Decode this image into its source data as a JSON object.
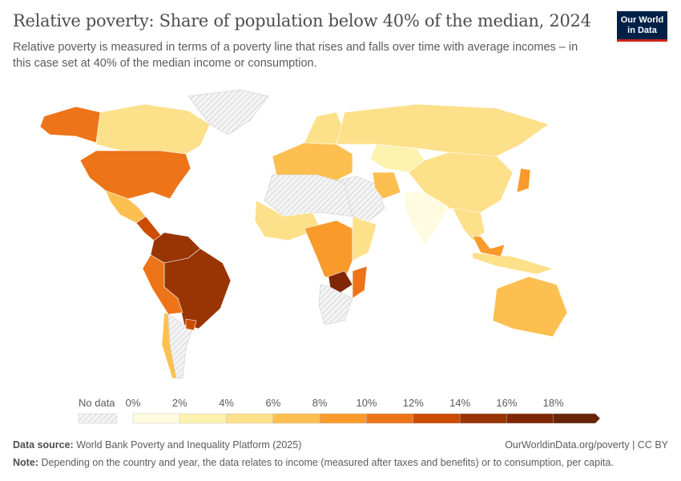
{
  "header": {
    "title": "Relative poverty: Share of population below 40% of the median, 2024",
    "subtitle": "Relative poverty is measured in terms of a poverty line that rises and falls over time with average incomes – in this case set at 40% of the median income or consumption.",
    "logo": "Our World in Data"
  },
  "legend": {
    "no_data_label": "No data",
    "ticks": [
      "0%",
      "2%",
      "4%",
      "6%",
      "8%",
      "10%",
      "12%",
      "14%",
      "16%",
      "18%"
    ],
    "bins": [
      {
        "range": [
          0,
          2
        ],
        "color": "#fefbe0"
      },
      {
        "range": [
          2,
          4
        ],
        "color": "#fef2b0"
      },
      {
        "range": [
          4,
          6
        ],
        "color": "#fde08a"
      },
      {
        "range": [
          6,
          8
        ],
        "color": "#fdbf4f"
      },
      {
        "range": [
          8,
          10
        ],
        "color": "#f99a2b"
      },
      {
        "range": [
          10,
          12
        ],
        "color": "#ed7418"
      },
      {
        "range": [
          12,
          14
        ],
        "color": "#cc4c02"
      },
      {
        "range": [
          14,
          16
        ],
        "color": "#993404"
      },
      {
        "range": [
          16,
          18
        ],
        "color": "#7f2704"
      },
      {
        "range": [
          18,
          20
        ],
        "color": "#662506"
      }
    ],
    "no_data_color": "hatched-gray"
  },
  "chart_data": {
    "type": "choropleth",
    "year": 2024,
    "unit": "%",
    "regions": [
      {
        "name": "Canada",
        "value": 5
      },
      {
        "name": "Alaska (United States)",
        "value": 11
      },
      {
        "name": "United States",
        "value": 11
      },
      {
        "name": "Greenland",
        "value": null
      },
      {
        "name": "Mexico",
        "value": 7
      },
      {
        "name": "Central America",
        "value": 13
      },
      {
        "name": "Colombia/Venezuela",
        "value": 15
      },
      {
        "name": "Brazil",
        "value": 15
      },
      {
        "name": "Peru/Bolivia",
        "value": 11
      },
      {
        "name": "Chile",
        "value": 7
      },
      {
        "name": "Argentina",
        "value": null
      },
      {
        "name": "Uruguay",
        "value": 13
      },
      {
        "name": "Europe",
        "value": 7
      },
      {
        "name": "Scandinavia",
        "value": 5
      },
      {
        "name": "Russia",
        "value": 5
      },
      {
        "name": "Kazakhstan",
        "value": 3
      },
      {
        "name": "Middle East",
        "value": null
      },
      {
        "name": "Iran",
        "value": 7
      },
      {
        "name": "China",
        "value": 5
      },
      {
        "name": "India",
        "value": 1
      },
      {
        "name": "Southeast Asia",
        "value": 5
      },
      {
        "name": "Japan",
        "value": 9
      },
      {
        "name": "Indonesia",
        "value": 5
      },
      {
        "name": "Malaysia",
        "value": 9
      },
      {
        "name": "North Africa",
        "value": null
      },
      {
        "name": "West Africa",
        "value": 5
      },
      {
        "name": "Central Africa",
        "value": 9
      },
      {
        "name": "East Africa",
        "value": 5
      },
      {
        "name": "Zambia",
        "value": 17
      },
      {
        "name": "Mozambique",
        "value": 11
      },
      {
        "name": "South Africa",
        "value": null
      },
      {
        "name": "Australia",
        "value": 7
      }
    ]
  },
  "footer": {
    "source_label": "Data source:",
    "source": "World Bank Poverty and Inequality Platform (2025)",
    "note_label": "Note:",
    "note": "Depending on the country and year, the data relates to income (measured after taxes and benefits) or to consumption, per capita.",
    "url": "OurWorldinData.org/poverty | CC BY"
  }
}
